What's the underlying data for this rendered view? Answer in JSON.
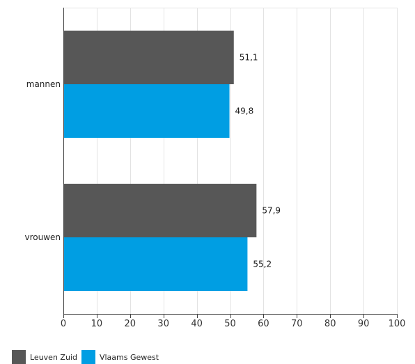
{
  "chart_data": {
    "type": "bar",
    "orientation": "horizontal",
    "categories": [
      "mannen",
      "vrouwen"
    ],
    "series": [
      {
        "name": "Leuven Zuid",
        "values": [
          51.1,
          57.9
        ],
        "labels": [
          "51,1",
          "57,9"
        ],
        "color": "#575757"
      },
      {
        "name": "Vlaams Gewest",
        "values": [
          49.8,
          55.2
        ],
        "labels": [
          "49,8",
          "55,2"
        ],
        "color": "#009ee3"
      }
    ],
    "xlim": [
      0,
      100
    ],
    "x_ticks": [
      0,
      10,
      20,
      30,
      40,
      50,
      60,
      70,
      80,
      90,
      100
    ],
    "x_tick_labels": [
      "0",
      "10",
      "20",
      "30",
      "40",
      "50",
      "60",
      "70",
      "80",
      "90",
      "100"
    ],
    "grid": true,
    "legend_position": "bottom-left"
  }
}
